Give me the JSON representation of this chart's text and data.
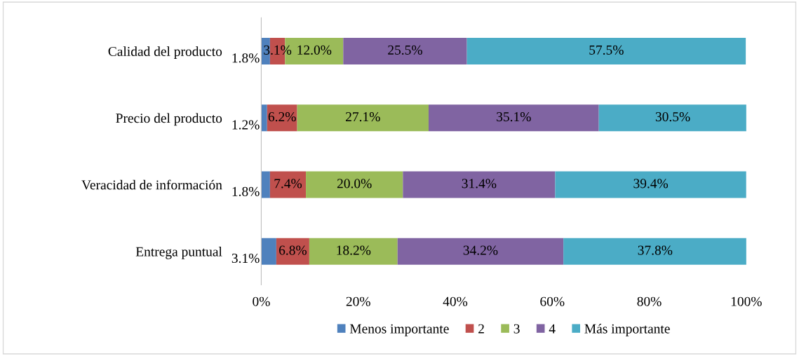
{
  "chart_data": {
    "type": "bar",
    "orientation": "horizontal",
    "stacked": true,
    "categories": [
      "Calidad del producto",
      "Precio del producto",
      "Veracidad de información",
      "Entrega puntual"
    ],
    "series": [
      {
        "name": "Menos importante",
        "color": "#4f81bd",
        "values": [
          1.8,
          1.2,
          1.8,
          3.1
        ],
        "value_labels": [
          "1.8%",
          "1.2%",
          "1.8%",
          "3.1%"
        ]
      },
      {
        "name": "2",
        "color": "#c0504d",
        "values": [
          3.1,
          6.2,
          7.4,
          6.8
        ],
        "value_labels": [
          "3.1%",
          "6.2%",
          "7.4%",
          "6.8%"
        ]
      },
      {
        "name": "3",
        "color": "#9bbb59",
        "values": [
          12.0,
          27.1,
          20.0,
          18.2
        ],
        "value_labels": [
          "12.0%",
          "27.1%",
          "20.0%",
          "18.2%"
        ]
      },
      {
        "name": "4",
        "color": "#8064a2",
        "values": [
          25.5,
          35.1,
          31.4,
          34.2
        ],
        "value_labels": [
          "25.5%",
          "35.1%",
          "31.4%",
          "34.2%"
        ]
      },
      {
        "name": "Más importante",
        "color": "#4bacc6",
        "values": [
          57.5,
          30.5,
          39.4,
          37.8
        ],
        "value_labels": [
          "57.5%",
          "30.5%",
          "39.4%",
          "37.8%"
        ]
      }
    ],
    "xlim": [
      0,
      100
    ],
    "xticks": [
      {
        "value": 0,
        "label": "0%"
      },
      {
        "value": 20,
        "label": "20%"
      },
      {
        "value": 40,
        "label": "40%"
      },
      {
        "value": 60,
        "label": "60%"
      },
      {
        "value": 80,
        "label": "80%"
      },
      {
        "value": 100,
        "label": "100%"
      }
    ],
    "grid": false,
    "legend": "bottom"
  }
}
